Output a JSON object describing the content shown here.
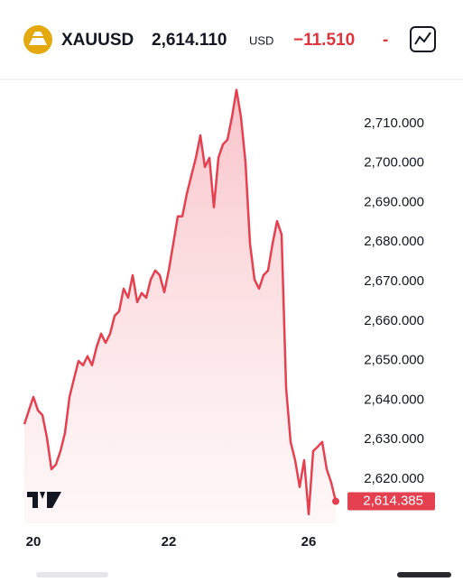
{
  "header": {
    "symbol": "XAUUSD",
    "price": "2,614.110",
    "currency": "USD",
    "change": "−11.510",
    "change_pct": "-"
  },
  "chart_data": {
    "type": "area",
    "categories": [
      null,
      null,
      "20",
      null,
      null,
      null,
      null,
      null,
      null,
      null,
      null,
      null,
      null,
      null,
      null,
      null,
      null,
      null,
      null,
      null,
      null,
      null,
      null,
      null,
      null,
      null,
      null,
      null,
      null,
      null,
      null,
      null,
      "22",
      null,
      null,
      null,
      null,
      null,
      null,
      null,
      null,
      null,
      null,
      null,
      null,
      null,
      null,
      null,
      null,
      null,
      null,
      null,
      null,
      null,
      null,
      null,
      null,
      null,
      null,
      null,
      null,
      null,
      null,
      "26",
      null,
      null,
      null,
      null,
      null,
      null
    ],
    "series": [
      {
        "color": "#e5404f",
        "values": [
          2633.9,
          2637.4,
          2640.8,
          2637.4,
          2636.2,
          2630.5,
          2622.5,
          2623.7,
          2627.1,
          2631.7,
          2640.8,
          2645.4,
          2649.9,
          2648.8,
          2651.1,
          2648.8,
          2653.4,
          2656.8,
          2654.5,
          2656.8,
          2661.3,
          2662.5,
          2668.2,
          2665.9,
          2671.6,
          2664.8,
          2667.1,
          2665.9,
          2670.5,
          2672.8,
          2671.6,
          2667.3,
          2672.8,
          2679.6,
          2686.5,
          2686.5,
          2692.2,
          2696.8,
          2701.3,
          2707.0,
          2699.0,
          2701.3,
          2688.8,
          2701.3,
          2704.7,
          2705.9,
          2711.6,
          2718.5,
          2711.6,
          2700.2,
          2679.6,
          2670.5,
          2668.2,
          2671.6,
          2672.8,
          2679.6,
          2685.3,
          2681.9,
          2643.1,
          2629.4,
          2624.8,
          2618.0,
          2624.8,
          2611.1,
          2627.1,
          2628.2,
          2629.4,
          2622.5,
          2619.1,
          2614.385
        ],
        "value_labels": [
          null,
          null,
          null,
          null,
          null,
          null,
          null,
          null,
          null,
          null,
          null,
          null,
          null,
          null,
          null,
          null,
          null,
          null,
          null,
          null,
          null,
          null,
          null,
          null,
          null,
          null,
          null,
          null,
          null,
          null,
          null,
          null,
          null,
          null,
          null,
          null,
          null,
          null,
          null,
          null,
          null,
          null,
          null,
          null,
          null,
          null,
          null,
          null,
          null,
          null,
          null,
          null,
          null,
          null,
          null,
          null,
          null,
          null,
          null,
          null,
          null,
          null,
          null,
          null,
          null,
          null,
          null,
          null,
          null,
          "2,614.385"
        ]
      }
    ],
    "ylim": [
      2608.8,
      2720.7
    ],
    "yticks": [
      {
        "value": 2620,
        "label": "2,620.000"
      },
      {
        "value": 2630,
        "label": "2,630.000"
      },
      {
        "value": 2640,
        "label": "2,640.000"
      },
      {
        "value": 2650,
        "label": "2,650.000"
      },
      {
        "value": 2660,
        "label": "2,660.000"
      },
      {
        "value": 2670,
        "label": "2,670.000"
      },
      {
        "value": 2680,
        "label": "2,680.000"
      },
      {
        "value": 2690,
        "label": "2,690.000"
      },
      {
        "value": 2700,
        "label": "2,700.000"
      },
      {
        "value": 2710,
        "label": "2,710.000"
      }
    ]
  }
}
